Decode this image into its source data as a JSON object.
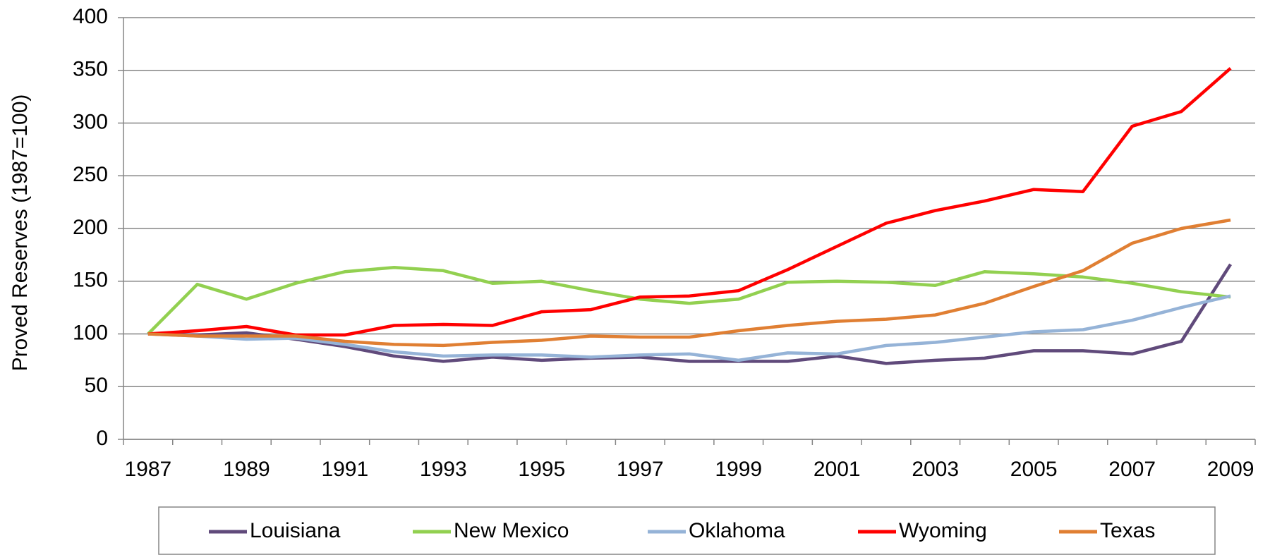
{
  "chart_data": {
    "type": "line",
    "y_label": "Proved Reserves (1987=100)",
    "categories": [
      "1987",
      null,
      "1989",
      null,
      "1991",
      null,
      "1993",
      null,
      "1995",
      null,
      "1997",
      null,
      "1999",
      null,
      "2001",
      null,
      "2003",
      null,
      "2005",
      null,
      "2007",
      null,
      "2009"
    ],
    "series": [
      {
        "name": "Louisiana",
        "color": "#604a7b",
        "values": [
          100,
          99,
          101,
          95,
          88,
          79,
          74,
          78,
          75,
          77,
          78,
          74,
          74,
          74,
          79,
          72,
          75,
          77,
          84,
          84,
          81,
          93,
          166
        ]
      },
      {
        "name": "New Mexico",
        "color": "#92d050",
        "values": [
          100,
          147,
          133,
          148,
          159,
          163,
          160,
          148,
          150,
          141,
          133,
          129,
          133,
          149,
          150,
          149,
          146,
          159,
          157,
          154,
          148,
          140,
          135
        ]
      },
      {
        "name": "Oklahoma",
        "color": "#95b3d7",
        "values": [
          100,
          98,
          95,
          96,
          90,
          83,
          79,
          80,
          80,
          78,
          80,
          81,
          75,
          82,
          81,
          89,
          92,
          97,
          102,
          104,
          113,
          125,
          136
        ]
      },
      {
        "name": "Wyoming",
        "color": "#ff0000",
        "values": [
          100,
          103,
          107,
          99,
          99,
          108,
          109,
          108,
          121,
          123,
          135,
          136,
          141,
          161,
          183,
          205,
          217,
          226,
          237,
          235,
          297,
          311,
          352
        ]
      },
      {
        "name": "Texas",
        "color": "#e07f33",
        "values": [
          100,
          98,
          98,
          98,
          93,
          90,
          89,
          92,
          94,
          98,
          97,
          97,
          103,
          108,
          112,
          114,
          118,
          129,
          145,
          160,
          186,
          200,
          208
        ]
      }
    ],
    "ylim": [
      0,
      400
    ],
    "yticks": [
      0,
      50,
      100,
      150,
      200,
      250,
      300,
      350,
      400
    ],
    "grid": true,
    "legend": "bottom"
  }
}
